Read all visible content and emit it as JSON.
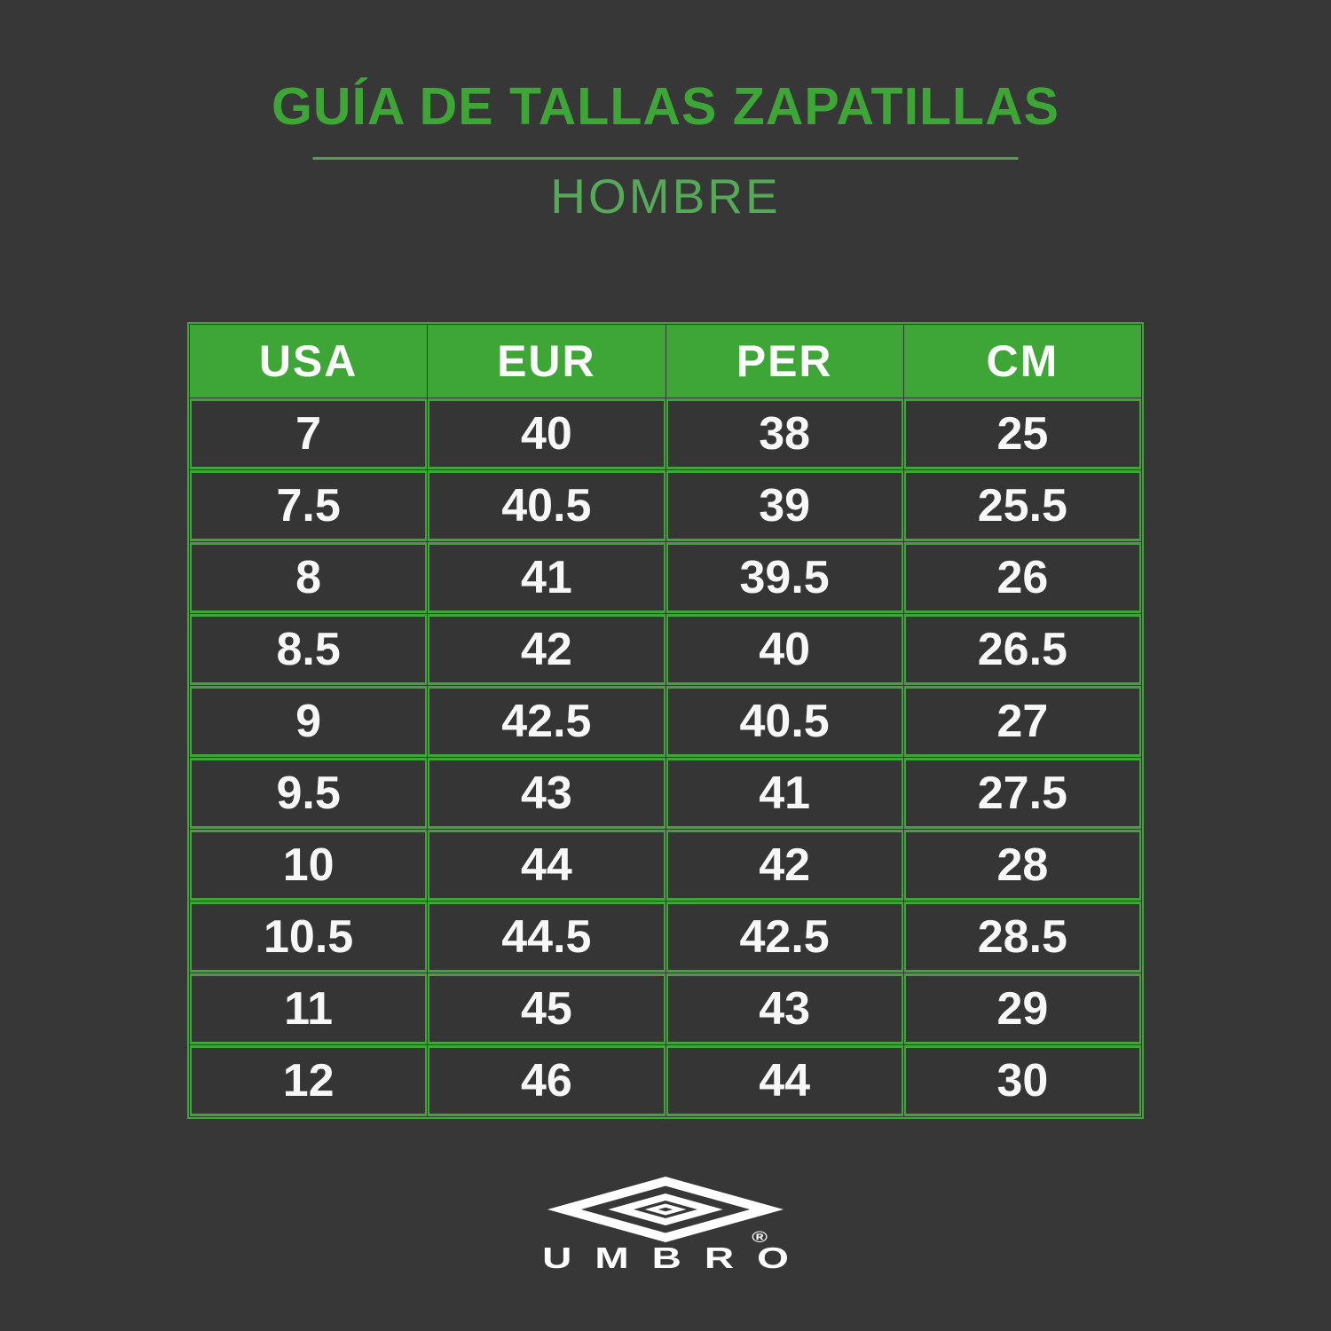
{
  "page": {
    "background": "#373737",
    "accent_green": "#3EA637",
    "subtitle_green": "#55A957",
    "text_white": "#F7F7F7"
  },
  "header": {
    "title": "GUÍA DE TALLAS ZAPATILLAS",
    "subtitle": "HOMBRE"
  },
  "size_table": {
    "columns": [
      "USA",
      "EUR",
      "PER",
      "CM"
    ],
    "rows": [
      [
        "7",
        "40",
        "38",
        "25"
      ],
      [
        "7.5",
        "40.5",
        "39",
        "25.5"
      ],
      [
        "8",
        "41",
        "39.5",
        "26"
      ],
      [
        "8.5",
        "42",
        "40",
        "26.5"
      ],
      [
        "9",
        "42.5",
        "40.5",
        "27"
      ],
      [
        "9.5",
        "43",
        "41",
        "27.5"
      ],
      [
        "10",
        "44",
        "42",
        "28"
      ],
      [
        "10.5",
        "44.5",
        "42.5",
        "28.5"
      ],
      [
        "11",
        "45",
        "43",
        "29"
      ],
      [
        "12",
        "46",
        "44",
        "30"
      ]
    ]
  },
  "brand": {
    "wordmark": "UMBRO",
    "registered": "®"
  },
  "chart_data": {
    "type": "table",
    "title": "GUÍA DE TALLAS ZAPATILLAS — HOMBRE",
    "columns": [
      "USA",
      "EUR",
      "PER",
      "CM"
    ],
    "rows": [
      [
        7,
        40,
        38,
        25
      ],
      [
        7.5,
        40.5,
        39,
        25.5
      ],
      [
        8,
        41,
        39.5,
        26
      ],
      [
        8.5,
        42,
        40,
        26.5
      ],
      [
        9,
        42.5,
        40.5,
        27
      ],
      [
        9.5,
        43,
        41,
        27.5
      ],
      [
        10,
        44,
        42,
        28
      ],
      [
        10.5,
        44.5,
        42.5,
        28.5
      ],
      [
        11,
        45,
        43,
        29
      ],
      [
        12,
        46,
        44,
        30
      ]
    ]
  }
}
